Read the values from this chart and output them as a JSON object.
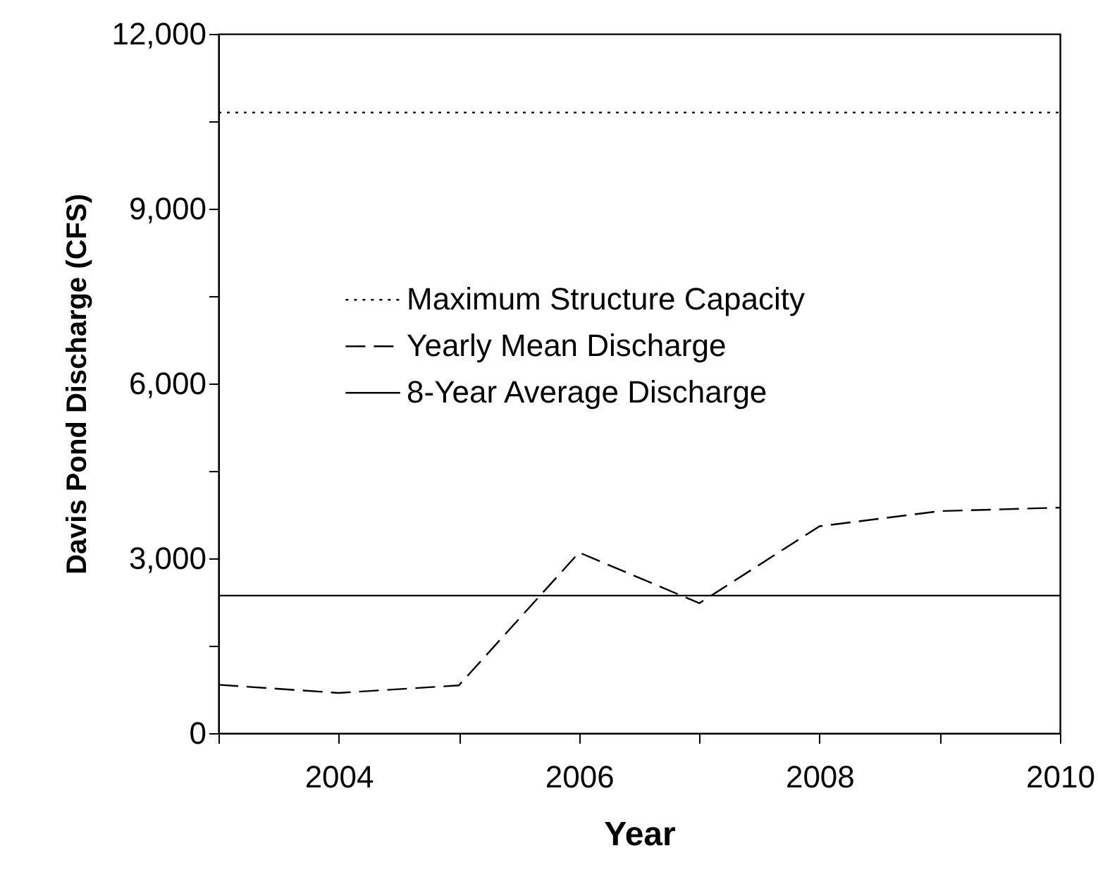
{
  "chart_data": {
    "type": "line",
    "xlabel": "Year",
    "ylabel": "Davis Pond Discharge (CFS)",
    "series": [
      {
        "name": "Maximum Structure Capacity",
        "color": "#000000",
        "line_style": "dotted",
        "x": [
          2003,
          2010
        ],
        "values": [
          10650,
          10650
        ]
      },
      {
        "name": "Yearly Mean Discharge",
        "color": "#000000",
        "line_style": "dashed",
        "x": [
          2003,
          2004,
          2005,
          2006,
          2007,
          2008,
          2009,
          2010
        ],
        "values": [
          830,
          690,
          820,
          3100,
          2230,
          3550,
          3810,
          3870
        ]
      },
      {
        "name": "8-Year Average Discharge",
        "color": "#000000",
        "line_style": "solid",
        "x": [
          2003,
          2010
        ],
        "values": [
          2360,
          2360
        ]
      }
    ],
    "xlim": [
      2003,
      2010
    ],
    "xticks": [
      {
        "value": 2003,
        "label": null
      },
      2004,
      {
        "value": 2005,
        "label": null
      },
      2006,
      {
        "value": 2007,
        "label": null
      },
      2008,
      {
        "value": 2009,
        "label": null
      },
      2010
    ],
    "ylim": [
      0,
      12000
    ],
    "yticks": [
      0,
      {
        "value": 1500,
        "label": null
      },
      {
        "value": 3000,
        "label": "3,000"
      },
      {
        "value": 4500,
        "label": null
      },
      {
        "value": 6000,
        "label": "6,000"
      },
      {
        "value": 7500,
        "label": null
      },
      {
        "value": 9000,
        "label": "9,000"
      },
      {
        "value": 10500,
        "label": null
      },
      {
        "value": 12000,
        "label": "12,000"
      }
    ],
    "legend": "top left",
    "grid": false,
    "marker": "none"
  }
}
